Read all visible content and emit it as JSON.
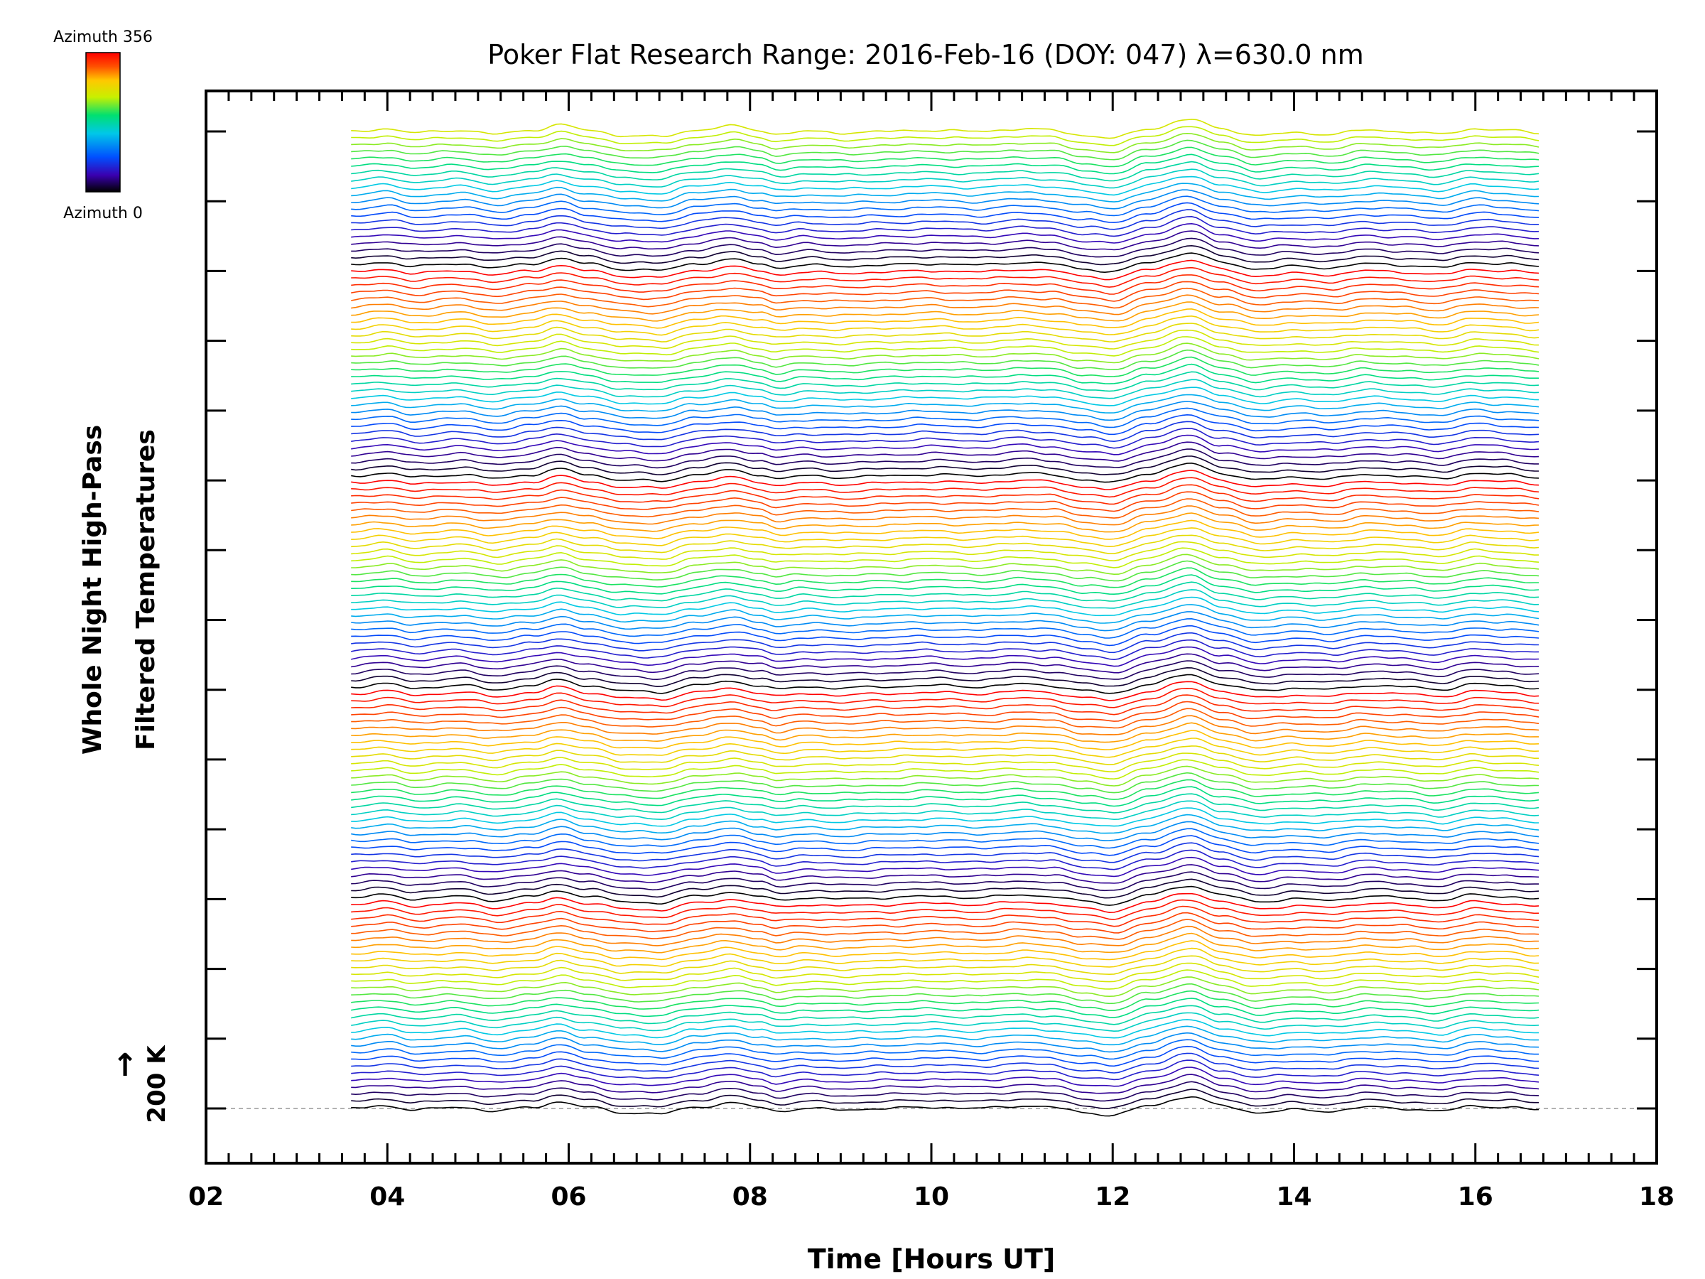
{
  "chart_data": {
    "type": "line",
    "title": "Poker Flat Research Range: 2016-Feb-16 (DOY: 047) λ=630.0 nm",
    "xlabel": "Time [Hours UT]",
    "ylabel_line1": "Whole Night High-Pass",
    "ylabel_line2": "Filtered Temperatures",
    "x_tick_labels": [
      "02",
      "04",
      "06",
      "08",
      "10",
      "12",
      "14",
      "16",
      "18"
    ],
    "x_ticks": [
      2,
      4,
      6,
      8,
      10,
      12,
      14,
      16,
      18
    ],
    "xlim": [
      2,
      18
    ],
    "data_x_range": [
      3.6,
      16.7
    ],
    "scale_bar_label": "200 K",
    "scale_bar_arrow": "↑",
    "colorbar": {
      "top_label": "Azimuth 356",
      "bottom_label": "Azimuth 0",
      "colors": [
        "#000000",
        "#3a00b0",
        "#0050ff",
        "#00c8e8",
        "#00e070",
        "#c8f000",
        "#ffc800",
        "#ff5000",
        "#ff0000"
      ]
    },
    "series_count": 140,
    "series_cycle": 30,
    "series_colors": [
      "#000000",
      "#3a00b0",
      "#0050ff",
      "#00c8e8",
      "#00e070",
      "#c8f000",
      "#ffc800",
      "#ff5000",
      "#ff0000"
    ],
    "common_signal": {
      "t": [
        3.6,
        4.0,
        4.3,
        4.8,
        5.2,
        5.6,
        5.9,
        6.2,
        6.6,
        7.0,
        7.4,
        7.8,
        8.1,
        8.3,
        8.6,
        9.0,
        9.5,
        10.0,
        10.5,
        11.0,
        11.3,
        11.7,
        12.0,
        12.4,
        12.85,
        13.2,
        13.6,
        14.0,
        14.4,
        14.8,
        15.2,
        15.6,
        16.0,
        16.3,
        16.7
      ],
      "v": [
        0,
        2,
        -1,
        1,
        -2,
        1,
        5,
        1,
        -3,
        -4,
        1,
        4,
        1,
        -2,
        0,
        -1,
        0,
        1,
        0,
        2,
        1,
        -3,
        -5,
        2,
        9,
        2,
        -3,
        -1,
        -2,
        1,
        0,
        -2,
        2,
        1,
        -1
      ]
    },
    "offset_per_series_K": 50,
    "yunits_per_K": 0.05
  }
}
